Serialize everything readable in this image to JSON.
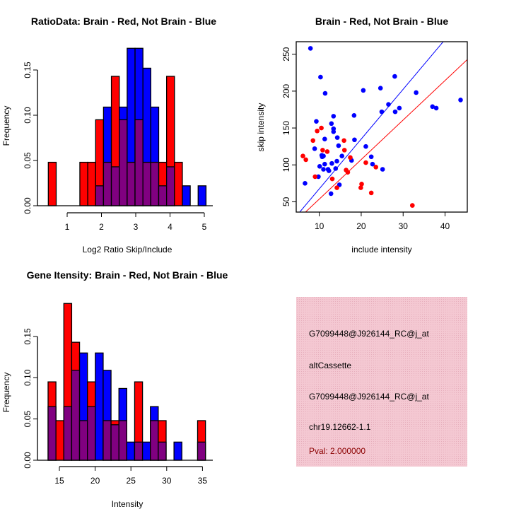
{
  "colors": {
    "red": "#ff0000",
    "blue": "#0000ff",
    "overlap": "#800080",
    "panel": "#f2c4cf",
    "pval": "#8b0000"
  },
  "chart_data": [
    {
      "type": "bar",
      "title": "RatioData: Brain - Red, Not Brain - Blue",
      "xlabel": "Log2 Ratio Skip/Include",
      "ylabel": "Frequency",
      "bin_start": 0.45,
      "bin_width": 0.23,
      "xticks": [
        "1",
        "2",
        "3",
        "4",
        "5"
      ],
      "yticks": [
        "0.00",
        "0.05",
        "0.10",
        "0.15"
      ],
      "series": [
        {
          "name": "Brain",
          "color": "red",
          "values": [
            0.048,
            0,
            0,
            0,
            0.048,
            0.048,
            0.095,
            0.048,
            0.143,
            0.095,
            0.048,
            0.095,
            0.048,
            0.048,
            0.048,
            0.143,
            0.048,
            0,
            0,
            0
          ]
        },
        {
          "name": "Not Brain",
          "color": "blue",
          "values": [
            0,
            0,
            0,
            0,
            0,
            0,
            0.022,
            0.109,
            0.043,
            0.109,
            0.174,
            0.174,
            0.152,
            0.109,
            0.022,
            0.043,
            0,
            0.022,
            0,
            0.022
          ]
        }
      ]
    },
    {
      "type": "scatter",
      "title": "Brain - Red, Not Brain - Blue",
      "xlabel": "include intensity",
      "ylabel": "skip intensity",
      "xlim": [
        4.5,
        45.3
      ],
      "ylim": [
        36,
        267
      ],
      "xticks": [
        "10",
        "20",
        "30",
        "40"
      ],
      "yticks": [
        "50",
        "100",
        "150",
        "200",
        "250"
      ],
      "series": [
        {
          "name": "Not Brain",
          "color": "blue",
          "slope": 6.75,
          "points": [
            [
              7.9,
              258
            ],
            [
              10.3,
              219
            ],
            [
              11.4,
              197
            ],
            [
              20.5,
              201
            ],
            [
              24.6,
              204
            ],
            [
              28.0,
              220
            ],
            [
              26.5,
              182
            ],
            [
              24.9,
              172
            ],
            [
              28.1,
              172
            ],
            [
              29.1,
              177
            ],
            [
              33.1,
              198
            ],
            [
              37.0,
              179
            ],
            [
              37.9,
              177
            ],
            [
              43.7,
              188
            ],
            [
              9.3,
              159
            ],
            [
              13.4,
              166
            ],
            [
              18.3,
              167
            ],
            [
              12.9,
              156
            ],
            [
              13.4,
              149
            ],
            [
              13.4,
              145
            ],
            [
              14.3,
              137
            ],
            [
              11.3,
              135
            ],
            [
              18.4,
              134
            ],
            [
              14.6,
              126
            ],
            [
              21.1,
              125
            ],
            [
              8.9,
              122
            ],
            [
              10.6,
              113
            ],
            [
              10.7,
              111
            ],
            [
              11.0,
              112
            ],
            [
              15.4,
              112
            ],
            [
              22.4,
              111
            ],
            [
              17.7,
              106
            ],
            [
              14.2,
              105
            ],
            [
              11.3,
              101
            ],
            [
              13.0,
              102
            ],
            [
              22.7,
              101
            ],
            [
              10.1,
              98
            ],
            [
              11.0,
              94
            ],
            [
              12.1,
              94
            ],
            [
              12.3,
              92
            ],
            [
              13.9,
              95
            ],
            [
              25.1,
              94
            ],
            [
              9.8,
              84
            ],
            [
              14.8,
              73
            ],
            [
              12.8,
              61
            ],
            [
              6.6,
              75
            ]
          ]
        },
        {
          "name": "Brain",
          "color": "red",
          "slope": 5.36,
          "points": [
            [
              6.1,
              112
            ],
            [
              6.8,
              107
            ],
            [
              8.5,
              133
            ],
            [
              9.5,
              146
            ],
            [
              10.5,
              150
            ],
            [
              10.8,
              120
            ],
            [
              11.9,
              118
            ],
            [
              9.0,
              84
            ],
            [
              15.9,
              133
            ],
            [
              16.0,
              120
            ],
            [
              17.4,
              110
            ],
            [
              16.4,
              93
            ],
            [
              16.8,
              90
            ],
            [
              13.1,
              81
            ],
            [
              14.2,
              69
            ],
            [
              20.1,
              74
            ],
            [
              19.9,
              69
            ],
            [
              21.1,
              103
            ],
            [
              23.5,
              97
            ],
            [
              22.4,
              62
            ],
            [
              32.2,
              45
            ]
          ]
        }
      ]
    },
    {
      "type": "bar",
      "title": "Gene Itensity: Brain - Red, Not Brain - Blue",
      "xlabel": "Intensity",
      "ylabel": "Frequency",
      "bin_start": 13.42,
      "bin_width": 1.1,
      "xticks": [
        "15",
        "20",
        "25",
        "30",
        "35"
      ],
      "yticks": [
        "0.00",
        "0.05",
        "0.10",
        "0.15"
      ],
      "series": [
        {
          "name": "Brain",
          "color": "red",
          "values": [
            0.095,
            0.048,
            0.19,
            0.143,
            0.048,
            0.095,
            0,
            0.048,
            0.048,
            0.048,
            0,
            0.095,
            0,
            0.048,
            0.048,
            0,
            0,
            0,
            0,
            0.048
          ]
        },
        {
          "name": "Not Brain",
          "color": "blue",
          "values": [
            0.065,
            0,
            0.065,
            0.109,
            0.13,
            0.065,
            0.13,
            0.109,
            0.043,
            0.087,
            0.022,
            0.022,
            0.022,
            0.065,
            0.022,
            0,
            0.022,
            0,
            0,
            0.022
          ]
        }
      ]
    }
  ],
  "info_panel": {
    "probe": "G7099448@J926144_RC@j_at",
    "event_type": "altCassette",
    "probe2": "G7099448@J926144_RC@j_at",
    "location": "chr19.12662-1.1",
    "pval": "Pval: 2.000000"
  }
}
